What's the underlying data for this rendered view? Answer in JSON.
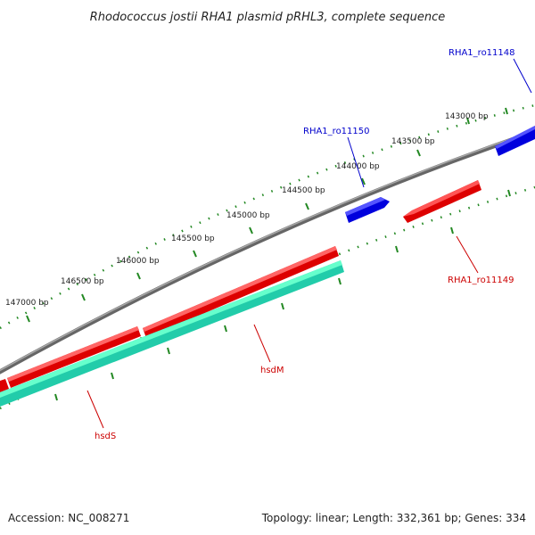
{
  "title": "Rhodococcus jostii RHA1 plasmid pRHL3, complete sequence",
  "ticks": [
    "143000 bp",
    "143500 bp",
    "144000 bp",
    "144500 bp",
    "145000 bp",
    "145500 bp",
    "146000 bp",
    "146500 bp",
    "147000 bp"
  ],
  "genes": [
    {
      "label": "RHA1_ro11148",
      "color": "#0000cc"
    },
    {
      "label": "RHA1_ro11150",
      "color": "#0000cc"
    },
    {
      "label": "RHA1_ro11149",
      "color": "#cc0000"
    },
    {
      "label": "hsdM",
      "color": "#cc0000"
    },
    {
      "label": "hsdS",
      "color": "#cc0000"
    }
  ],
  "colors": {
    "backbone": "#888888",
    "forward_gene": "#0000ee",
    "reverse_gene": "#ee0000",
    "orf": "#33ddaa",
    "tick": "#228822"
  },
  "footer": {
    "accession": "Accession: NC_008271",
    "summary": "Topology: linear; Length: 332,361 bp; Genes: 334"
  }
}
